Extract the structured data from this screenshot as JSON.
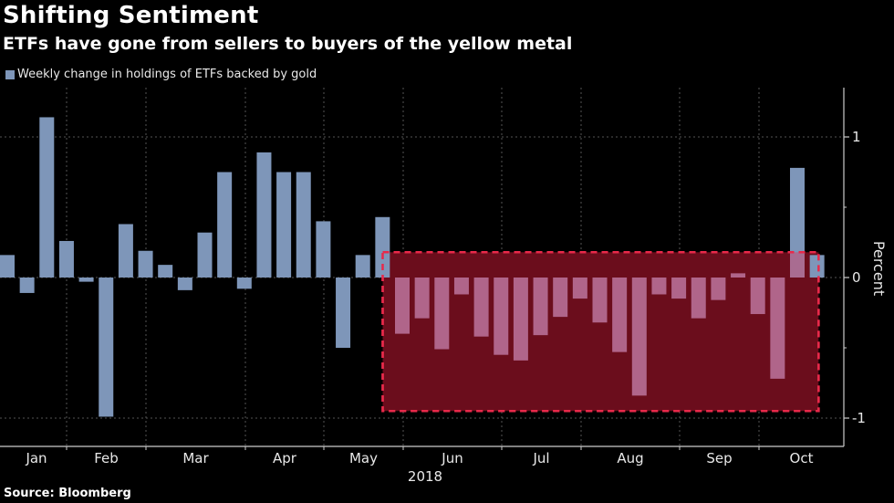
{
  "header": {
    "title": "Shifting Sentiment",
    "subtitle": "ETFs have gone from sellers to buyers of the yellow metal"
  },
  "footer": {
    "source": "Source: Bloomberg"
  },
  "colors": {
    "background": "#000000",
    "bar": "#7e96b9",
    "highlight_fill": "#6b0d1c",
    "highlight_border": "#e8294a",
    "highlighted_bar": "#b0658a",
    "grid": "#555555",
    "axis": "#cccccc"
  },
  "chart_data": {
    "type": "bar",
    "title": "Shifting Sentiment",
    "subtitle": "ETFs have gone from sellers to buyers of the yellow metal",
    "legend": [
      "Weekly change in holdings of ETFs backed by gold"
    ],
    "legend_position": "top-left",
    "xlabel": "2018",
    "ylabel": "Percent",
    "ylim": [
      -1.3,
      1.3
    ],
    "yticks": [
      -1,
      0,
      1
    ],
    "ytick_labels": [
      "-1",
      "0",
      "1"
    ],
    "y_axis_side": "right",
    "grid": true,
    "x_month_labels": [
      "Jan",
      "Feb",
      "Mar",
      "Apr",
      "May",
      "Jun",
      "Jul",
      "Aug",
      "Sep",
      "Oct"
    ],
    "x_year_label": "2018",
    "series": [
      {
        "name": "Weekly change in holdings of ETFs backed by gold",
        "values": [
          0.16,
          -0.11,
          1.14,
          0.26,
          -0.03,
          -0.99,
          0.38,
          0.19,
          0.09,
          -0.09,
          0.32,
          0.75,
          -0.08,
          0.89,
          0.75,
          0.75,
          0.4,
          -0.5,
          0.16,
          0.43,
          -0.4,
          -0.29,
          -0.51,
          -0.12,
          -0.42,
          -0.55,
          -0.59,
          -0.41,
          -0.28,
          -0.15,
          -0.32,
          -0.53,
          -0.84,
          -0.12,
          -0.15,
          -0.29,
          -0.16,
          0.03,
          -0.26,
          -0.72,
          0.78,
          0.16
        ]
      }
    ],
    "annotations": [
      {
        "type": "highlight-box",
        "description": "Dashed red box marking the ETF selling period",
        "from_bar_index": 20,
        "to_bar_index": 39,
        "y_range": [
          -0.95,
          0.18
        ]
      }
    ]
  }
}
